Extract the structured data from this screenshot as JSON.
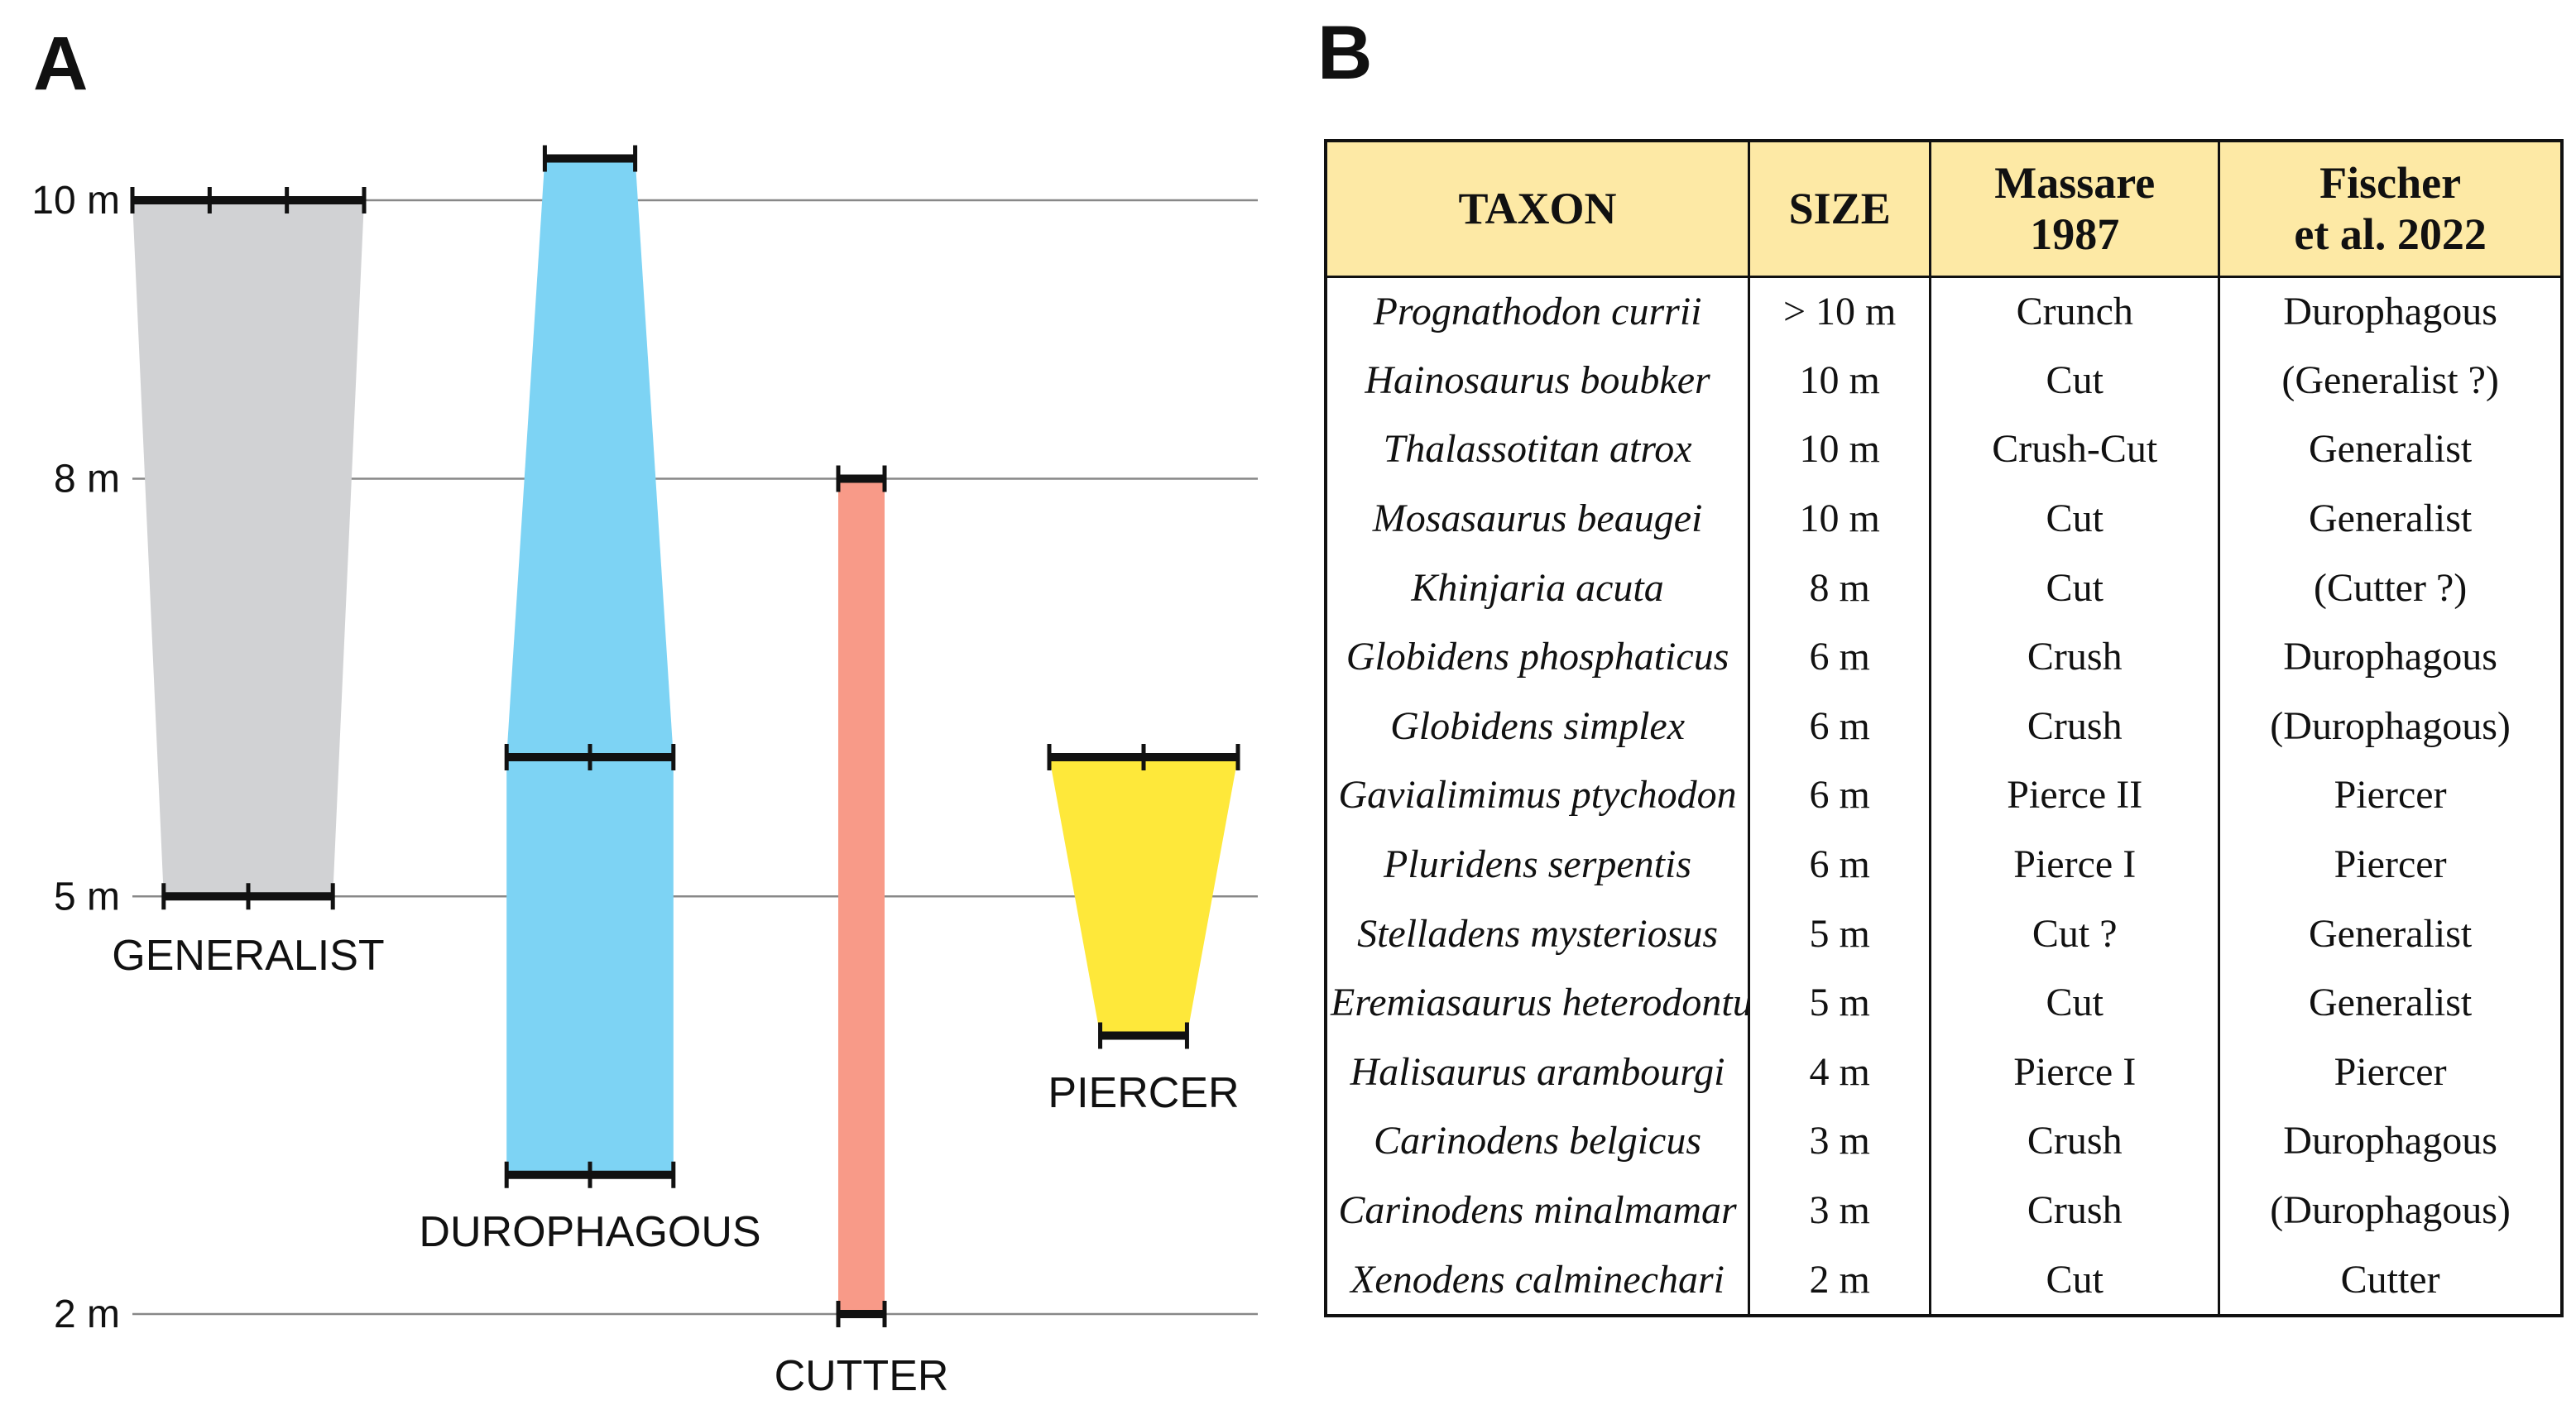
{
  "panel_a": {
    "letter": "A"
  },
  "panel_b": {
    "letter": "B",
    "table": {
      "headers": [
        "TAXON",
        "SIZE",
        "Massare\n1987",
        "Fischer\net al. 2022"
      ],
      "rows": [
        [
          "Prognathodon currii",
          "> 10 m",
          "Crunch",
          "Durophagous"
        ],
        [
          "Hainosaurus boubker",
          "10 m",
          "Cut",
          "(Generalist ?)"
        ],
        [
          "Thalassotitan atrox",
          "10 m",
          "Crush-Cut",
          "Generalist"
        ],
        [
          "Mosasaurus beaugei",
          "10 m",
          "Cut",
          "Generalist"
        ],
        [
          "Khinjaria acuta",
          "8 m",
          "Cut",
          "(Cutter ?)"
        ],
        [
          "Globidens phosphaticus",
          "6 m",
          "Crush",
          "Durophagous"
        ],
        [
          "Globidens simplex",
          "6 m",
          "Crush",
          "(Durophagous)"
        ],
        [
          "Gavialimimus ptychodon",
          "6 m",
          "Pierce II",
          "Piercer"
        ],
        [
          "Pluridens serpentis",
          "6 m",
          "Pierce I",
          "Piercer"
        ],
        [
          "Stelladens mysteriosus",
          "5 m",
          "Cut ?",
          "Generalist"
        ],
        [
          "Eremiasaurus heterodontus",
          "5 m",
          "Cut",
          "Generalist"
        ],
        [
          "Halisaurus arambourgi",
          "4 m",
          "Pierce I",
          "Piercer"
        ],
        [
          "Carinodens belgicus",
          "3 m",
          "Crush",
          "Durophagous"
        ],
        [
          "Carinodens minalmamar",
          "3 m",
          "Crush",
          "(Durophagous)"
        ],
        [
          "Xenodens calminechari",
          "2 m",
          "Cut",
          "Cutter"
        ]
      ]
    }
  },
  "chart_data": {
    "type": "area",
    "title": "",
    "xlabel": "",
    "ylabel": "",
    "ylim": [
      2,
      10.5
    ],
    "y_ticks": [
      {
        "value": 10,
        "label": "10 m"
      },
      {
        "value": 8,
        "label": "8 m"
      },
      {
        "value": 5,
        "label": "5 m"
      },
      {
        "value": 2,
        "label": "2 m"
      }
    ],
    "grid": true,
    "groups": [
      {
        "name": "GENERALIST",
        "color": "#d1d2d4",
        "min": 5,
        "max": 10,
        "min_ticks": 3,
        "max_ticks": 4,
        "top_width": 1.0,
        "bottom_width": 0.73
      },
      {
        "name": "DUROPHAGOUS",
        "color": "#7dd3f4",
        "min": 3,
        "max": 10.3,
        "mid": 6,
        "min_ticks": 3,
        "mid_ticks": 3,
        "max_ticks": 2,
        "top_width": 0.52,
        "mid_width": 0.96,
        "bottom_width": 0.96
      },
      {
        "name": "CUTTER",
        "color": "#f89a88",
        "min": 2,
        "max": 8,
        "min_ticks": 2,
        "max_ticks": 2,
        "top_width": 0.5,
        "bottom_width": 0.5
      },
      {
        "name": "PIERCER",
        "color": "#fee83a",
        "min": 4,
        "max": 6,
        "min_ticks": 2,
        "max_ticks": 3,
        "top_width": 1.0,
        "bottom_width": 0.46
      }
    ],
    "colors": {
      "axis_line": "#888888",
      "bar_line": "#111111"
    }
  }
}
